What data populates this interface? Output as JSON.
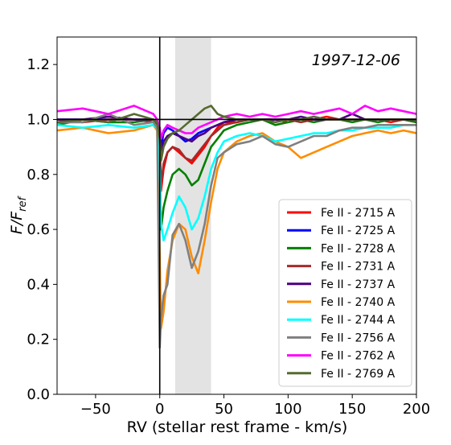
{
  "chart_data": {
    "type": "line",
    "annotation": "1997-12-06",
    "xlabel": "RV (stellar rest frame - km/s)",
    "ylabel_main": "F/F",
    "ylabel_sub": "ref",
    "xlim": [
      -80,
      200
    ],
    "ylim": [
      0.0,
      1.3
    ],
    "xticks": [
      -50,
      0,
      50,
      100,
      150,
      200
    ],
    "xtick_labels": [
      "−50",
      "0",
      "50",
      "100",
      "150",
      "200"
    ],
    "yticks": [
      0.0,
      0.2,
      0.4,
      0.6,
      0.8,
      1.0,
      1.2
    ],
    "ytick_labels": [
      "0.0",
      "0.2",
      "0.4",
      "0.6",
      "0.8",
      "1.0",
      "1.2"
    ],
    "shaded_region": [
      12,
      40
    ],
    "reference_line_y": 1.0,
    "reference_line_x": 0,
    "legend_position": "lower-right",
    "series": [
      {
        "name": "Fe II -  2715 A",
        "color": "#ff0000",
        "x": [
          -80,
          -60,
          -40,
          -20,
          -5,
          -2,
          0,
          1,
          3,
          6,
          10,
          15,
          20,
          25,
          30,
          35,
          40,
          45,
          50,
          60,
          70,
          80,
          90,
          100,
          110,
          120,
          130,
          140,
          150,
          160,
          170,
          180,
          190,
          200
        ],
        "y": [
          0.99,
          1.0,
          1.01,
          1.0,
          0.99,
          0.98,
          0.9,
          0.74,
          0.82,
          0.88,
          0.9,
          0.88,
          0.86,
          0.84,
          0.87,
          0.9,
          0.94,
          0.97,
          0.99,
          0.99,
          1.0,
          1.0,
          1.0,
          0.99,
          1.0,
          1.0,
          1.01,
          1.0,
          1.0,
          1.0,
          1.0,
          0.99,
          1.0,
          0.99
        ]
      },
      {
        "name": "Fe II -  2725 A",
        "color": "#0000ff",
        "x": [
          -80,
          -60,
          -40,
          -20,
          -5,
          -2,
          0,
          1,
          3,
          6,
          10,
          15,
          20,
          25,
          30,
          35,
          40,
          45,
          50,
          60,
          70,
          80,
          90,
          100,
          110,
          120,
          130,
          140,
          150,
          160,
          170,
          180,
          190,
          200
        ],
        "y": [
          1.0,
          1.0,
          1.0,
          1.0,
          1.0,
          0.99,
          0.96,
          0.9,
          0.95,
          0.97,
          0.96,
          0.94,
          0.92,
          0.93,
          0.95,
          0.96,
          0.97,
          0.98,
          0.99,
          1.0,
          1.0,
          1.0,
          1.0,
          1.0,
          1.0,
          1.0,
          1.0,
          1.0,
          1.0,
          1.0,
          1.0,
          1.0,
          1.0,
          1.0
        ]
      },
      {
        "name": "Fe II -  2728 A",
        "color": "#008000",
        "x": [
          -80,
          -60,
          -40,
          -20,
          -5,
          -2,
          0,
          1,
          3,
          6,
          10,
          15,
          20,
          25,
          30,
          35,
          40,
          45,
          50,
          60,
          70,
          80,
          90,
          100,
          110,
          120,
          130,
          140,
          150,
          160,
          170,
          180,
          190,
          200
        ],
        "y": [
          0.98,
          1.0,
          0.99,
          0.99,
          1.0,
          0.98,
          0.85,
          0.6,
          0.68,
          0.74,
          0.8,
          0.82,
          0.8,
          0.76,
          0.78,
          0.84,
          0.9,
          0.93,
          0.96,
          0.98,
          0.99,
          1.0,
          0.98,
          0.99,
          1.0,
          0.99,
          1.0,
          1.0,
          0.99,
          1.0,
          0.99,
          1.0,
          1.0,
          0.99
        ]
      },
      {
        "name": "Fe II -  2731 A",
        "color": "#a52a2a",
        "x": [
          -80,
          -60,
          -40,
          -20,
          -5,
          -2,
          0,
          1,
          3,
          6,
          10,
          15,
          20,
          25,
          30,
          35,
          40,
          45,
          50,
          60,
          70,
          80,
          90,
          100,
          110,
          120,
          130,
          140,
          150,
          160,
          170,
          180,
          190,
          200
        ],
        "y": [
          1.0,
          0.99,
          1.0,
          1.0,
          1.0,
          0.99,
          0.9,
          0.76,
          0.84,
          0.88,
          0.9,
          0.89,
          0.86,
          0.85,
          0.88,
          0.91,
          0.94,
          0.96,
          0.98,
          0.99,
          1.0,
          1.0,
          1.0,
          1.0,
          0.99,
          1.0,
          1.0,
          1.0,
          1.0,
          1.0,
          1.0,
          1.0,
          1.0,
          1.0
        ]
      },
      {
        "name": "Fe II -  2737 A",
        "color": "#4b0082",
        "x": [
          -80,
          -60,
          -40,
          -20,
          -5,
          -2,
          0,
          1,
          3,
          6,
          10,
          15,
          20,
          25,
          30,
          35,
          40,
          45,
          50,
          60,
          70,
          80,
          90,
          100,
          110,
          120,
          130,
          140,
          150,
          160,
          170,
          180,
          190,
          200
        ],
        "y": [
          1.0,
          1.0,
          1.01,
          1.0,
          1.0,
          0.99,
          0.95,
          0.88,
          0.92,
          0.94,
          0.95,
          0.94,
          0.93,
          0.92,
          0.94,
          0.95,
          0.97,
          0.98,
          0.99,
          1.0,
          1.0,
          1.0,
          1.0,
          1.0,
          1.01,
          1.0,
          1.0,
          1.0,
          1.02,
          1.0,
          1.0,
          1.0,
          1.0,
          1.0
        ]
      },
      {
        "name": "Fe II -  2740 A",
        "color": "#ff8c00",
        "x": [
          -80,
          -60,
          -40,
          -20,
          -5,
          -2,
          0,
          1,
          3,
          6,
          10,
          15,
          20,
          25,
          30,
          35,
          40,
          45,
          50,
          60,
          70,
          80,
          90,
          100,
          110,
          120,
          130,
          140,
          150,
          160,
          170,
          180,
          190,
          200
        ],
        "y": [
          0.96,
          0.97,
          0.95,
          0.96,
          0.98,
          0.96,
          0.5,
          0.24,
          0.3,
          0.45,
          0.56,
          0.62,
          0.6,
          0.5,
          0.44,
          0.56,
          0.7,
          0.82,
          0.88,
          0.92,
          0.94,
          0.95,
          0.92,
          0.9,
          0.86,
          0.88,
          0.9,
          0.92,
          0.94,
          0.95,
          0.96,
          0.95,
          0.96,
          0.95
        ]
      },
      {
        "name": "Fe II -  2744 A",
        "color": "#00ffff",
        "x": [
          -80,
          -60,
          -40,
          -20,
          -5,
          -2,
          0,
          1,
          3,
          6,
          10,
          15,
          20,
          25,
          30,
          35,
          40,
          45,
          50,
          60,
          70,
          80,
          90,
          100,
          110,
          120,
          130,
          140,
          150,
          160,
          170,
          180,
          190,
          200
        ],
        "y": [
          0.98,
          0.97,
          0.98,
          0.97,
          0.98,
          0.97,
          0.82,
          0.62,
          0.56,
          0.6,
          0.66,
          0.72,
          0.68,
          0.6,
          0.64,
          0.72,
          0.82,
          0.88,
          0.92,
          0.94,
          0.95,
          0.94,
          0.92,
          0.93,
          0.94,
          0.95,
          0.95,
          0.96,
          0.96,
          0.97,
          0.97,
          0.97,
          0.98,
          0.98
        ]
      },
      {
        "name": "Fe II -  2756 A",
        "color": "#808080",
        "x": [
          -80,
          -60,
          -40,
          -20,
          -5,
          -2,
          0,
          1,
          3,
          6,
          10,
          15,
          20,
          25,
          30,
          35,
          40,
          45,
          50,
          60,
          70,
          80,
          90,
          100,
          110,
          120,
          130,
          140,
          150,
          160,
          170,
          180,
          190,
          200
        ],
        "y": [
          0.99,
          0.99,
          1.02,
          0.98,
          0.99,
          0.97,
          0.17,
          0.28,
          0.36,
          0.4,
          0.58,
          0.62,
          0.56,
          0.46,
          0.52,
          0.62,
          0.76,
          0.86,
          0.88,
          0.91,
          0.92,
          0.94,
          0.91,
          0.9,
          0.92,
          0.94,
          0.94,
          0.96,
          0.97,
          0.97,
          0.98,
          0.98,
          0.98,
          0.98
        ]
      },
      {
        "name": "Fe II -  2762 A",
        "color": "#ff00ff",
        "x": [
          -80,
          -60,
          -40,
          -20,
          -5,
          -2,
          0,
          1,
          3,
          6,
          10,
          15,
          20,
          25,
          30,
          35,
          40,
          45,
          50,
          60,
          70,
          80,
          90,
          100,
          110,
          120,
          130,
          140,
          150,
          160,
          170,
          180,
          190,
          200
        ],
        "y": [
          1.03,
          1.04,
          1.02,
          1.05,
          1.02,
          1.0,
          0.97,
          0.93,
          0.96,
          0.98,
          0.97,
          0.96,
          0.95,
          0.95,
          0.97,
          0.98,
          0.99,
          1.0,
          1.01,
          1.02,
          1.01,
          1.02,
          1.01,
          1.02,
          1.03,
          1.02,
          1.03,
          1.04,
          1.02,
          1.05,
          1.03,
          1.04,
          1.03,
          1.02
        ]
      },
      {
        "name": "Fe II -  2769 A",
        "color": "#556b2f",
        "x": [
          -80,
          -60,
          -40,
          -20,
          -5,
          -2,
          0,
          1,
          3,
          6,
          10,
          15,
          20,
          25,
          30,
          35,
          40,
          45,
          50,
          60,
          70,
          80,
          90,
          100,
          110,
          120,
          130,
          140,
          150,
          160,
          170,
          180,
          190,
          200
        ],
        "y": [
          0.99,
          1.0,
          0.99,
          1.02,
          1.0,
          0.99,
          0.93,
          0.85,
          0.9,
          0.93,
          0.95,
          0.96,
          0.98,
          1.0,
          1.02,
          1.04,
          1.05,
          1.02,
          1.01,
          1.0,
          1.0,
          1.0,
          0.99,
          1.0,
          1.0,
          1.01,
          1.0,
          1.0,
          1.0,
          1.0,
          1.0,
          1.0,
          1.0,
          1.0
        ]
      }
    ]
  }
}
